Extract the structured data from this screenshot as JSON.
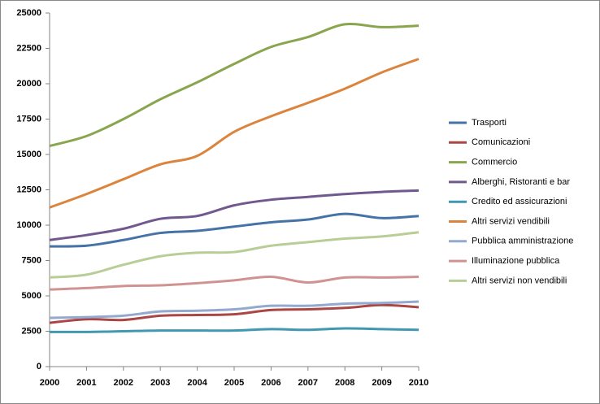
{
  "chart_data": {
    "type": "line",
    "x": [
      2000,
      2001,
      2002,
      2003,
      2004,
      2005,
      2006,
      2007,
      2008,
      2009,
      2010
    ],
    "xlim": [
      2000,
      2010
    ],
    "xticks": [
      2000,
      2001,
      2002,
      2003,
      2004,
      2005,
      2006,
      2007,
      2008,
      2009,
      2010
    ],
    "ylim": [
      0,
      25000
    ],
    "yticks": [
      0,
      2500,
      5000,
      7500,
      10000,
      12500,
      15000,
      17500,
      20000,
      22500,
      25000
    ],
    "grid": false,
    "legend": "right",
    "series": [
      {
        "name": "Trasporti",
        "color": "#4572a7",
        "values": [
          8500,
          8550,
          8950,
          9450,
          9600,
          9900,
          10200,
          10400,
          10800,
          10500,
          10650
        ]
      },
      {
        "name": "Comunicazioni",
        "color": "#aa4643",
        "values": [
          3100,
          3350,
          3300,
          3600,
          3650,
          3700,
          4000,
          4050,
          4150,
          4350,
          4200
        ]
      },
      {
        "name": "Commercio",
        "color": "#89a54e",
        "values": [
          15600,
          16300,
          17500,
          18900,
          20100,
          21400,
          22600,
          23300,
          24200,
          24000,
          24100
        ]
      },
      {
        "name": "Alberghi, Ristoranti e bar",
        "color": "#71588f",
        "values": [
          8950,
          9300,
          9750,
          10450,
          10650,
          11400,
          11800,
          12000,
          12200,
          12350,
          12450
        ]
      },
      {
        "name": "Credito ed assicurazioni",
        "color": "#4198af",
        "values": [
          2450,
          2450,
          2500,
          2550,
          2550,
          2550,
          2650,
          2600,
          2700,
          2650,
          2600
        ]
      },
      {
        "name": "Altri servizi vendibili",
        "color": "#db843d",
        "values": [
          11250,
          12200,
          13250,
          14300,
          14900,
          16600,
          17700,
          18650,
          19650,
          20800,
          21750
        ]
      },
      {
        "name": "Pubblica amministrazione",
        "color": "#93a9cf",
        "values": [
          3450,
          3500,
          3600,
          3900,
          3950,
          4050,
          4300,
          4300,
          4450,
          4500,
          4600
        ]
      },
      {
        "name": "Illuminazione pubblica",
        "color": "#d19392",
        "values": [
          5450,
          5550,
          5700,
          5750,
          5900,
          6100,
          6350,
          5950,
          6300,
          6300,
          6350
        ]
      },
      {
        "name": "Altri servizi non vendibili",
        "color": "#b9cd96",
        "values": [
          6300,
          6500,
          7200,
          7800,
          8050,
          8100,
          8550,
          8800,
          9050,
          9200,
          9500
        ]
      }
    ]
  }
}
